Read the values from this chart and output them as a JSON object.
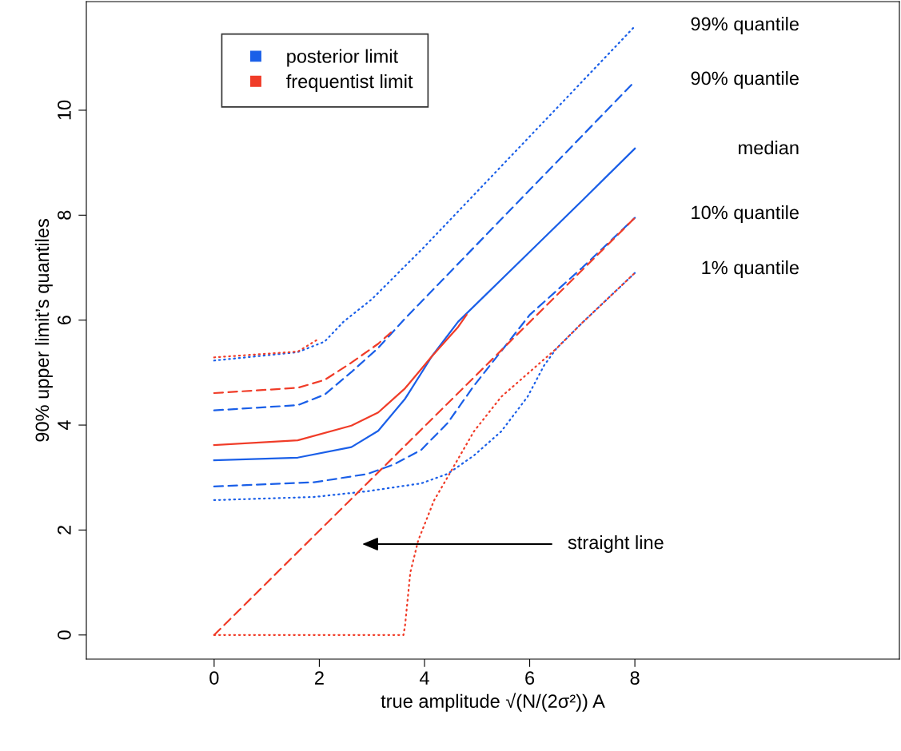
{
  "chart_data": {
    "type": "line",
    "xlabel": "true amplitude √(N/(2σ²)) A",
    "ylabel": "90% upper limit’s quantiles",
    "xlim": [
      -2.43,
      13.03
    ],
    "ylim": [
      -0.46,
      12.07
    ],
    "xticks": [
      0,
      2,
      4,
      6,
      8
    ],
    "yticks": [
      0,
      2,
      4,
      6,
      8,
      10
    ],
    "grid": false,
    "legend": "top left",
    "marker": "none",
    "series": [
      {
        "color": "#1a5fe8",
        "line_style": "dotted",
        "x": [
          0,
          1.9,
          2.92,
          3.94,
          4.44,
          4.94,
          5.46,
          5.96,
          6.27,
          6.5,
          7,
          8
        ],
        "values": [
          2.57,
          2.63,
          2.74,
          2.89,
          3.07,
          3.42,
          3.88,
          4.54,
          5.13,
          5.45,
          5.95,
          6.9
        ]
      },
      {
        "color": "#1a5fe8",
        "line_style": "dashed",
        "x": [
          0,
          1.9,
          2.92,
          3.42,
          3.94,
          4.44,
          4.94,
          5.46,
          6,
          7,
          8
        ],
        "values": [
          2.83,
          2.91,
          3.07,
          3.25,
          3.53,
          4.04,
          4.75,
          5.41,
          6.1,
          7.0,
          7.95
        ]
      },
      {
        "name": "posterior limit",
        "color": "#1a5fe8",
        "line_style": "solid",
        "x": [
          0,
          1.59,
          2.61,
          3.12,
          3.63,
          4.14,
          4.64,
          6,
          7,
          8
        ],
        "values": [
          3.33,
          3.38,
          3.58,
          3.89,
          4.5,
          5.31,
          5.97,
          7.3,
          8.28,
          9.27
        ]
      },
      {
        "color": "#1a5fe8",
        "line_style": "dashed",
        "x": [
          0,
          1.59,
          2.1,
          2.61,
          3.12,
          3.63,
          8
        ],
        "values": [
          4.28,
          4.38,
          4.58,
          5.01,
          5.47,
          6.03,
          10.55
        ]
      },
      {
        "color": "#1a5fe8",
        "line_style": "dotted",
        "x": [
          0,
          1.59,
          2.1,
          2.46,
          3,
          4,
          8
        ],
        "values": [
          5.23,
          5.39,
          5.59,
          5.97,
          6.4,
          7.4,
          11.6
        ]
      },
      {
        "color": "#f03c28",
        "line_style": "dotted",
        "x": [
          0,
          3.6,
          3.63,
          3.73,
          3.88,
          4.18,
          4.44,
          4.94,
          5.46,
          6.27,
          6.5,
          7,
          8
        ],
        "values": [
          0,
          0,
          0.18,
          1.19,
          1.8,
          2.56,
          3.01,
          3.88,
          4.54,
          5.25,
          5.45,
          5.95,
          6.9
        ]
      },
      {
        "color": "#f03c28",
        "line_style": "dashed",
        "x": [
          0,
          8
        ],
        "values": [
          0,
          7.95
        ]
      },
      {
        "name": "frequentist limit",
        "color": "#f03c28",
        "line_style": "solid",
        "x": [
          0,
          1.59,
          2.61,
          3.12,
          3.63,
          4.14,
          4.64,
          4.8
        ],
        "values": [
          3.62,
          3.71,
          3.99,
          4.24,
          4.7,
          5.31,
          5.87,
          6.1
        ]
      },
      {
        "color": "#f03c28",
        "line_style": "dashed",
        "x": [
          0,
          1.59,
          2.1,
          2.61,
          3.12,
          3.4
        ],
        "values": [
          4.61,
          4.71,
          4.86,
          5.19,
          5.55,
          5.8
        ]
      },
      {
        "color": "#f03c28",
        "line_style": "dotted",
        "x": [
          0,
          1.59,
          2.0
        ],
        "values": [
          5.29,
          5.4,
          5.65
        ]
      }
    ],
    "annotations": [
      "99% quantile",
      "90% quantile",
      "median",
      "10% quantile",
      "1% quantile",
      "straight line"
    ]
  }
}
